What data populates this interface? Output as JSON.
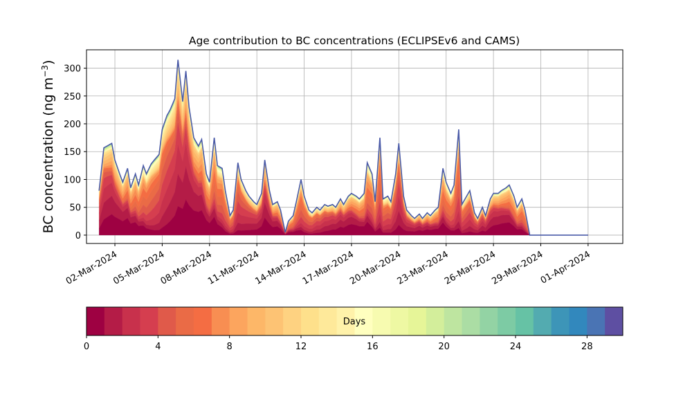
{
  "chart_data": {
    "type": "area",
    "title": "Age contribution to BC concentrations (ECLIPSEv6 and CAMS)",
    "ylabel": "BC concentration (ng m",
    "ylabel_sup": "−3",
    "ylabel_close": ")",
    "xlabel": "",
    "ylim": [
      -15,
      333
    ],
    "yticks": [
      0,
      50,
      100,
      150,
      200,
      250,
      300
    ],
    "x_start": "2024-03-01",
    "xlim_days": [
      -0.8,
      33.2
    ],
    "xticks": [
      {
        "label": "02-Mar-2024",
        "day": 1
      },
      {
        "label": "05-Mar-2024",
        "day": 4
      },
      {
        "label": "08-Mar-2024",
        "day": 7
      },
      {
        "label": "11-Mar-2024",
        "day": 10
      },
      {
        "label": "14-Mar-2024",
        "day": 13
      },
      {
        "label": "17-Mar-2024",
        "day": 16
      },
      {
        "label": "20-Mar-2024",
        "day": 19
      },
      {
        "label": "23-Mar-2024",
        "day": 22
      },
      {
        "label": "26-Mar-2024",
        "day": 25
      },
      {
        "label": "29-Mar-2024",
        "day": 28
      },
      {
        "label": "01-Apr-2024",
        "day": 31
      }
    ],
    "grid": true,
    "stack_layers": 30,
    "total_series": {
      "day": [
        0,
        0.3,
        0.5,
        0.8,
        1.0,
        1.3,
        1.5,
        1.8,
        2.0,
        2.3,
        2.5,
        2.8,
        3.0,
        3.3,
        3.5,
        3.8,
        4.0,
        4.3,
        4.5,
        4.8,
        5.0,
        5.3,
        5.5,
        5.7,
        6.0,
        6.3,
        6.5,
        6.8,
        7.0,
        7.3,
        7.5,
        7.8,
        8.0,
        8.3,
        8.5,
        8.8,
        9.0,
        9.3,
        9.5,
        9.8,
        10.0,
        10.3,
        10.5,
        10.8,
        11.0,
        11.3,
        11.5,
        11.8,
        12.0,
        12.3,
        12.5,
        12.8,
        13.0,
        13.3,
        13.5,
        13.8,
        14.0,
        14.3,
        14.5,
        14.8,
        15.0,
        15.3,
        15.5,
        15.8,
        16.0,
        16.3,
        16.5,
        16.8,
        17.0,
        17.3,
        17.5,
        17.8,
        18.0,
        18.3,
        18.5,
        18.8,
        19.0,
        19.3,
        19.5,
        19.8,
        20.0,
        20.3,
        20.5,
        20.8,
        21.0,
        21.3,
        21.5,
        21.8,
        22.0,
        22.3,
        22.5,
        22.8,
        23.0,
        23.3,
        23.5,
        23.8,
        24.0,
        24.3,
        24.5,
        24.8,
        25.0,
        25.3,
        25.5,
        25.8,
        26.0,
        26.3,
        26.5,
        26.8,
        27.0,
        27.3,
        27.5,
        27.8,
        28.0,
        28.3,
        28.5,
        28.8,
        29.0,
        29.3,
        29.5,
        29.8,
        30.0,
        30.3,
        30.5,
        30.8,
        31.0
      ],
      "value": [
        80,
        157,
        160,
        165,
        135,
        110,
        95,
        120,
        85,
        110,
        90,
        125,
        110,
        128,
        135,
        145,
        190,
        215,
        225,
        245,
        315,
        240,
        295,
        230,
        175,
        160,
        172,
        110,
        95,
        175,
        125,
        120,
        80,
        35,
        45,
        130,
        100,
        80,
        70,
        60,
        55,
        75,
        135,
        80,
        55,
        60,
        45,
        5,
        25,
        35,
        60,
        100,
        70,
        45,
        40,
        50,
        45,
        55,
        52,
        55,
        50,
        65,
        55,
        70,
        75,
        70,
        65,
        75,
        130,
        110,
        60,
        175,
        65,
        70,
        60,
        110,
        165,
        70,
        45,
        35,
        30,
        38,
        30,
        40,
        35,
        45,
        50,
        120,
        95,
        75,
        90,
        190,
        55,
        70,
        80,
        40,
        30,
        50,
        35,
        65,
        75,
        75,
        80,
        85,
        90,
        70,
        50,
        65,
        45,
        0,
        0,
        0,
        0,
        0,
        0,
        0,
        0,
        0,
        0,
        0,
        0,
        0,
        0,
        0,
        0
      ]
    },
    "colorbar": {
      "label": "Days",
      "range": [
        0,
        30
      ],
      "ticks": [
        0,
        4,
        8,
        12,
        16,
        20,
        24,
        28
      ],
      "levels": 30,
      "colors": [
        "#9e0142",
        "#b41c47",
        "#c8314c",
        "#d53e4f",
        "#e05a4a",
        "#ea6b46",
        "#f46d43",
        "#f88e52",
        "#fca55e",
        "#fdb768",
        "#fdc374",
        "#fed281",
        "#fee08b",
        "#fee99a",
        "#fff2aa",
        "#ffffbf",
        "#f7fbb0",
        "#eef8a3",
        "#e6f598",
        "#d3ee9b",
        "#bee5a0",
        "#abdda4",
        "#93d3a4",
        "#7dcba4",
        "#66c2a5",
        "#53abb0",
        "#3d95b8",
        "#3288bd",
        "#4a74b4",
        "#5e4fa2"
      ]
    }
  }
}
